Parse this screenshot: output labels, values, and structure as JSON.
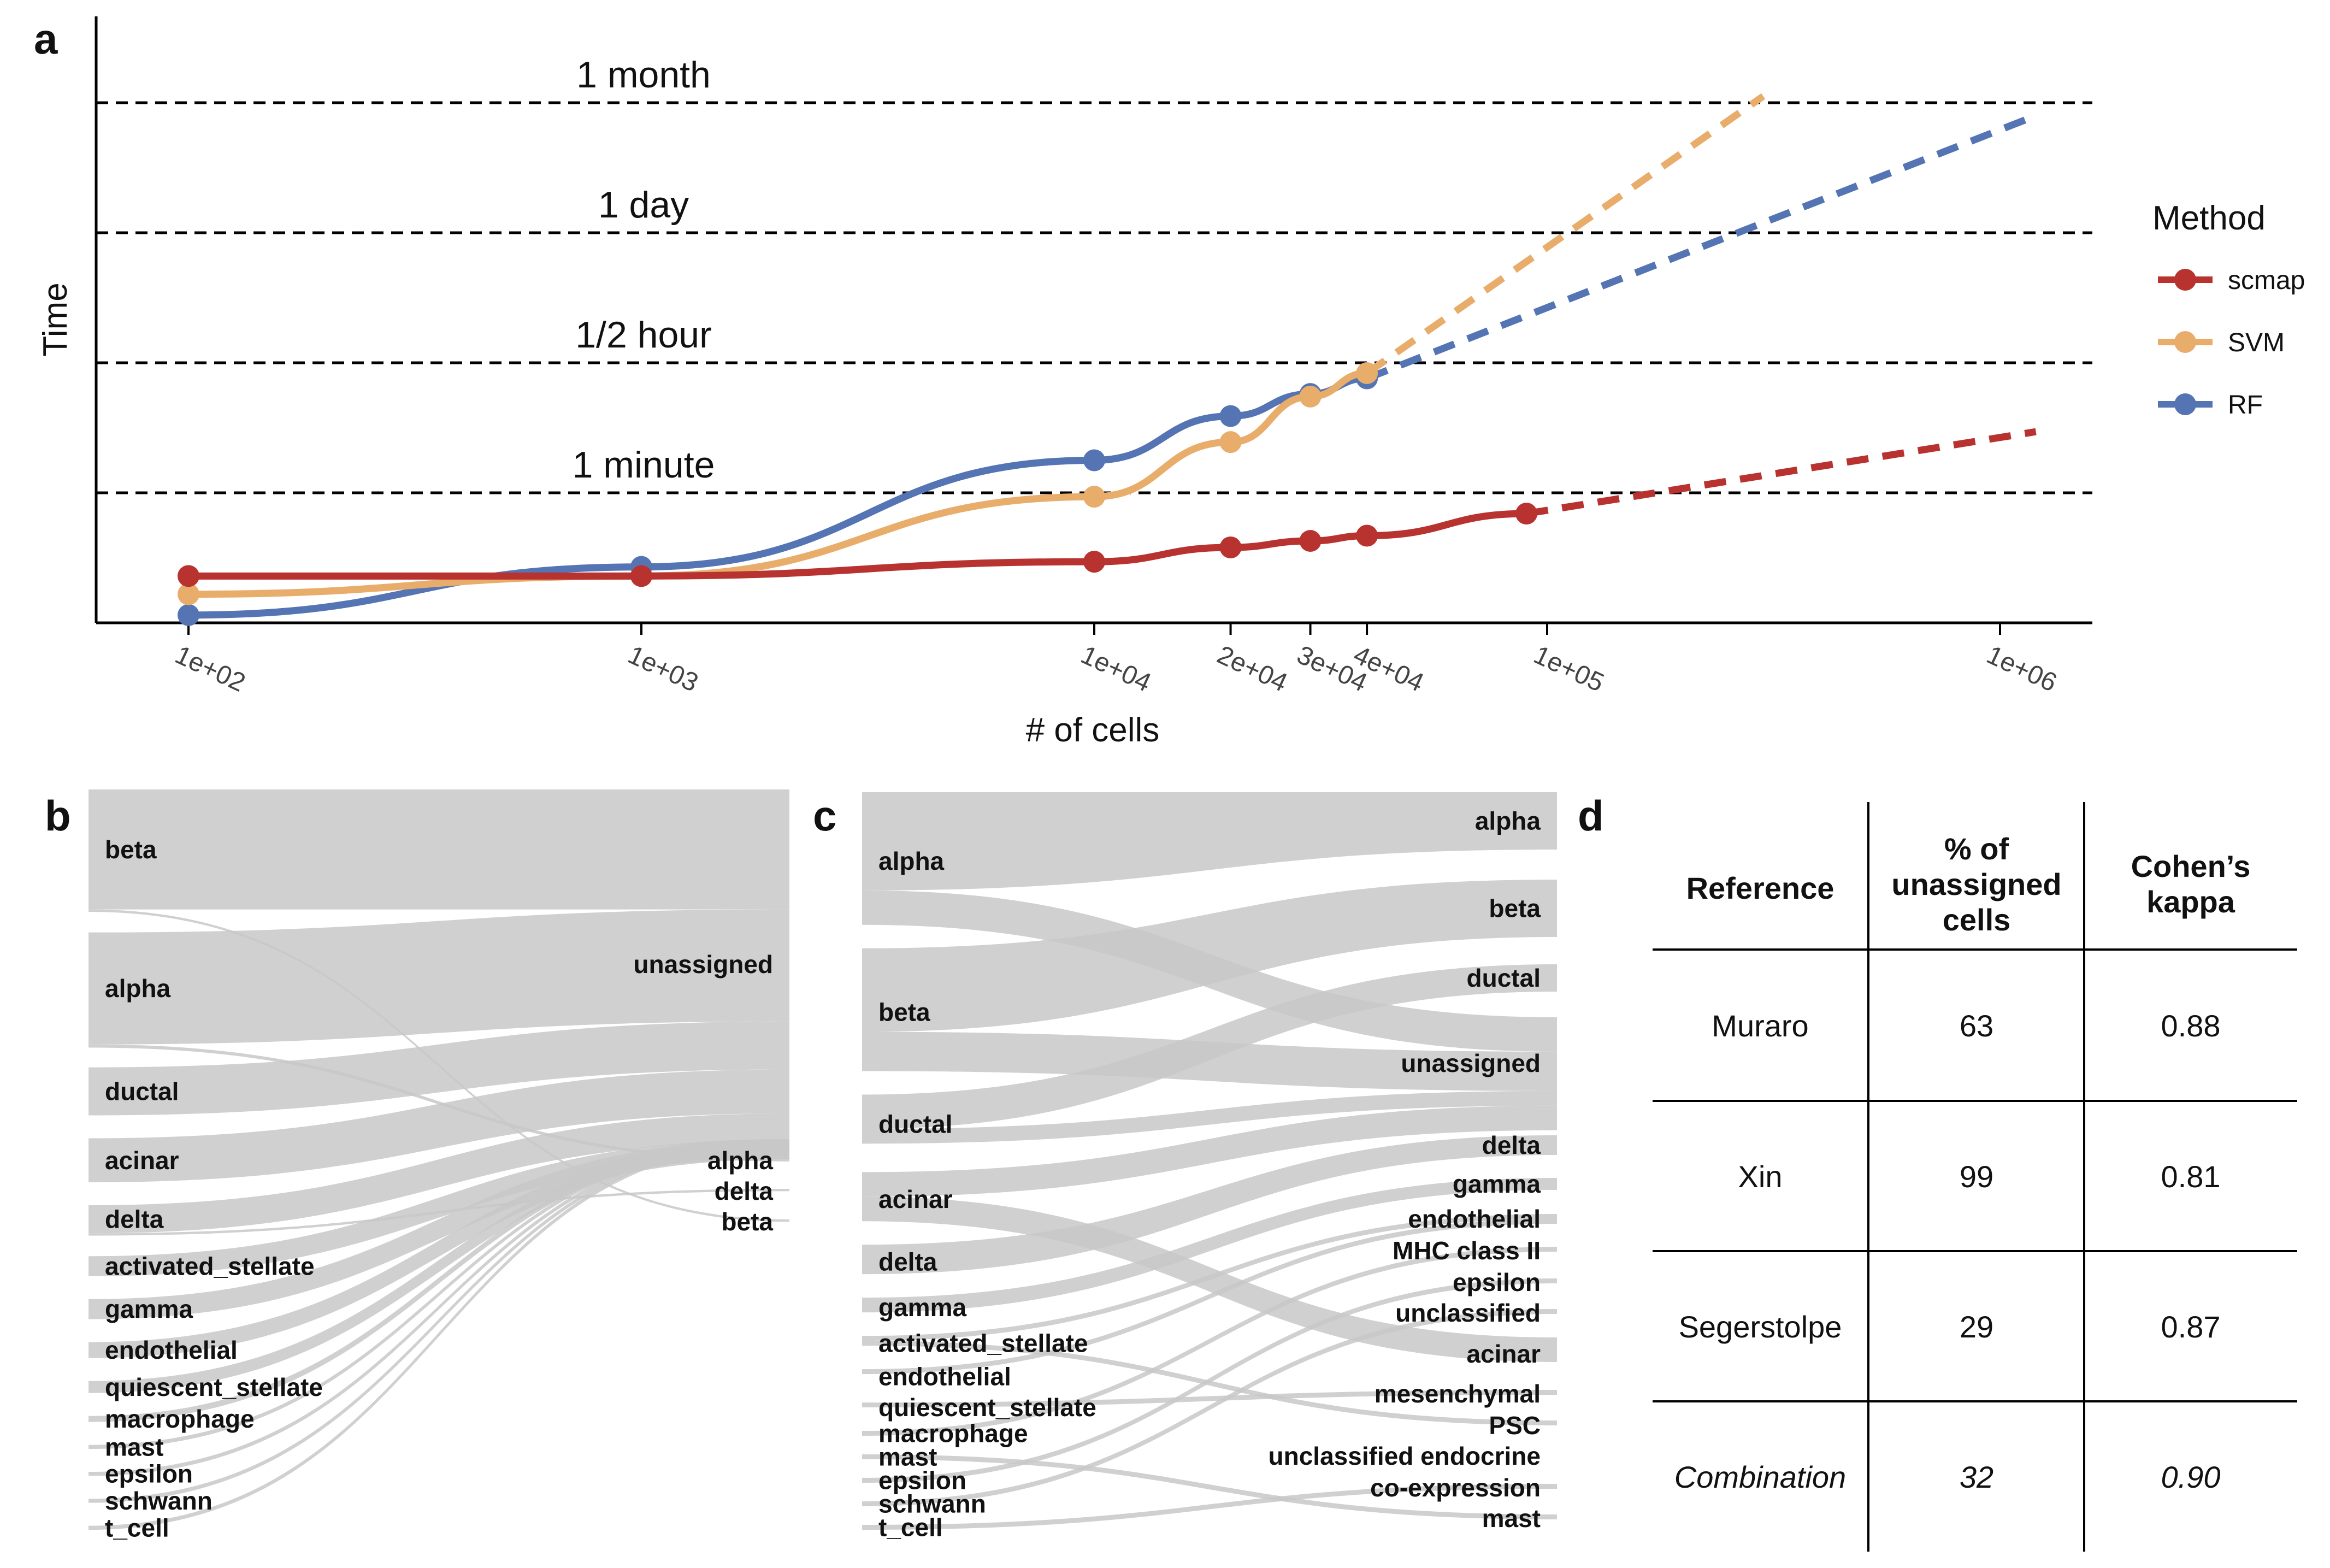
{
  "panels": {
    "a": "a",
    "b": "b",
    "c": "c",
    "d": "d"
  },
  "colors": {
    "scmap": "#b83230",
    "SVM": "#e9ad6b",
    "RF": "#5474b3",
    "flow": "#c8c8c8",
    "grid": "#000000"
  },
  "chart_data": [
    {
      "type": "line",
      "xlabel": "# of cells",
      "ylabel": "Time",
      "x_scale": "log",
      "x_ticks": [
        {
          "value": 100,
          "label": "1e+02"
        },
        {
          "value": 1000,
          "label": "1e+03"
        },
        {
          "value": 10000,
          "label": "1e+04"
        },
        {
          "value": 20000,
          "label": "2e+04"
        },
        {
          "value": 30000,
          "label": "3e+04"
        },
        {
          "value": 40000,
          "label": "4e+04"
        },
        {
          "value": 100000,
          "label": "1e+05"
        },
        {
          "value": 1000000,
          "label": "1e+06"
        }
      ],
      "xlim": [
        80,
        1200000
      ],
      "reference_lines": [
        {
          "label": "1 minute",
          "level": 1
        },
        {
          "label": "1/2 hour",
          "level": 2
        },
        {
          "label": "1 day",
          "level": 3
        },
        {
          "label": "1 month",
          "level": 4
        }
      ],
      "legend_title": "Method",
      "legend_position": "right",
      "series": [
        {
          "name": "scmap",
          "x": [
            100,
            1000,
            10000,
            20000,
            30000,
            40000,
            90000
          ],
          "y": [
            0.36,
            0.36,
            0.47,
            0.58,
            0.63,
            0.67,
            0.84
          ],
          "extrapolation": {
            "x": [
              90000,
              1200000
            ],
            "y": [
              0.84,
              1.47
            ]
          }
        },
        {
          "name": "SVM",
          "x": [
            100,
            1000,
            10000,
            20000,
            30000,
            40000
          ],
          "y": [
            0.22,
            0.36,
            0.97,
            1.39,
            1.74,
            1.92
          ],
          "extrapolation": {
            "x": [
              40000,
              300000
            ],
            "y": [
              1.92,
              4.05
            ]
          }
        },
        {
          "name": "RF",
          "x": [
            100,
            1000,
            10000,
            20000,
            30000,
            40000
          ],
          "y": [
            0.06,
            0.43,
            1.25,
            1.59,
            1.76,
            1.88
          ],
          "extrapolation": {
            "x": [
              40000,
              1200000
            ],
            "y": [
              1.88,
              3.9
            ]
          }
        }
      ],
      "ylim": [
        0,
        4.3
      ]
    },
    {
      "type": "sankey",
      "left": [
        "beta",
        "alpha",
        "ductal",
        "acinar",
        "delta",
        "activated_stellate",
        "gamma",
        "endothelial",
        "quiescent_stellate",
        "macrophage",
        "mast",
        "epsilon",
        "schwann",
        "t_cell"
      ],
      "left_values": [
        30,
        28,
        12,
        11,
        7,
        5,
        5,
        4,
        3,
        1.5,
        1,
        1,
        1,
        1
      ],
      "right": [
        "unassigned",
        "alpha",
        "delta",
        "beta"
      ],
      "right_values": [
        109,
        0.8,
        0.6,
        0.6
      ],
      "flows": [
        {
          "from": "beta",
          "to": "unassigned",
          "value": 30
        },
        {
          "from": "alpha",
          "to": "unassigned",
          "value": 28
        },
        {
          "from": "alpha",
          "to": "alpha",
          "value": 0.8
        },
        {
          "from": "ductal",
          "to": "unassigned",
          "value": 12
        },
        {
          "from": "acinar",
          "to": "unassigned",
          "value": 11
        },
        {
          "from": "delta",
          "to": "unassigned",
          "value": 7
        },
        {
          "from": "delta",
          "to": "delta",
          "value": 0.6
        },
        {
          "from": "activated_stellate",
          "to": "unassigned",
          "value": 5
        },
        {
          "from": "gamma",
          "to": "unassigned",
          "value": 5
        },
        {
          "from": "endothelial",
          "to": "unassigned",
          "value": 4
        },
        {
          "from": "quiescent_stellate",
          "to": "unassigned",
          "value": 3
        },
        {
          "from": "macrophage",
          "to": "unassigned",
          "value": 1.5
        },
        {
          "from": "mast",
          "to": "unassigned",
          "value": 1
        },
        {
          "from": "epsilon",
          "to": "unassigned",
          "value": 1
        },
        {
          "from": "schwann",
          "to": "unassigned",
          "value": 1
        },
        {
          "from": "t_cell",
          "to": "unassigned",
          "value": 1
        },
        {
          "from": "beta",
          "to": "beta",
          "value": 0.6
        }
      ]
    },
    {
      "type": "sankey",
      "left": [
        "alpha",
        "beta",
        "ductal",
        "acinar",
        "delta",
        "gamma",
        "activated_stellate",
        "endothelial",
        "quiescent_stellate",
        "macrophage",
        "mast",
        "epsilon",
        "schwann",
        "t_cell"
      ],
      "left_values": [
        28,
        26,
        12,
        11,
        7,
        4,
        3,
        3,
        2,
        1,
        1,
        1,
        1,
        1
      ],
      "right": [
        "alpha",
        "beta",
        "ductal",
        "unassigned",
        "delta",
        "gamma",
        "endothelial",
        "MHC class II",
        "epsilon",
        "unclassified",
        "acinar",
        "mesenchymal",
        "PSC",
        "unclassified endocrine",
        "co-expression",
        "mast"
      ],
      "right_values": [
        22,
        18,
        8,
        26,
        6,
        3,
        2,
        1,
        1,
        1,
        7,
        1,
        2,
        1,
        1,
        1
      ],
      "flows": [
        {
          "from": "alpha",
          "to": "alpha",
          "value": 20
        },
        {
          "from": "alpha",
          "to": "unassigned",
          "value": 7
        },
        {
          "from": "beta",
          "to": "beta",
          "value": 17
        },
        {
          "from": "beta",
          "to": "unassigned",
          "value": 8
        },
        {
          "from": "ductal",
          "to": "ductal",
          "value": 7
        },
        {
          "from": "ductal",
          "to": "unassigned",
          "value": 3
        },
        {
          "from": "acinar",
          "to": "unassigned",
          "value": 5
        },
        {
          "from": "acinar",
          "to": "acinar",
          "value": 5
        },
        {
          "from": "delta",
          "to": "delta",
          "value": 6
        },
        {
          "from": "gamma",
          "to": "gamma",
          "value": 3
        },
        {
          "from": "activated_stellate",
          "to": "endothelial",
          "value": 1
        },
        {
          "from": "activated_stellate",
          "to": "PSC",
          "value": 1
        },
        {
          "from": "endothelial",
          "to": "endothelial",
          "value": 1
        },
        {
          "from": "quiescent_stellate",
          "to": "mesenchymal",
          "value": 1
        },
        {
          "from": "macrophage",
          "to": "MHC class II",
          "value": 1
        },
        {
          "from": "mast",
          "to": "mast",
          "value": 1
        },
        {
          "from": "epsilon",
          "to": "epsilon",
          "value": 1
        },
        {
          "from": "schwann",
          "to": "unclassified",
          "value": 1
        },
        {
          "from": "t_cell",
          "to": "co-expression",
          "value": 1
        }
      ]
    },
    {
      "type": "table",
      "columns": [
        "Reference",
        "% of unassigned cells",
        "Cohen's kappa"
      ],
      "header_lines": [
        [
          "Reference"
        ],
        [
          "% of",
          "unassigned",
          "cells"
        ],
        [
          "Cohen’s",
          "kappa"
        ]
      ],
      "rows": [
        {
          "values": [
            "Muraro",
            "63",
            "0.88"
          ],
          "italic": false
        },
        {
          "values": [
            "Xin",
            "99",
            "0.81"
          ],
          "italic": false
        },
        {
          "values": [
            "Segerstolpe",
            "29",
            "0.87"
          ],
          "italic": false
        },
        {
          "values": [
            "Combination",
            "32",
            "0.90"
          ],
          "italic": true
        }
      ]
    }
  ]
}
